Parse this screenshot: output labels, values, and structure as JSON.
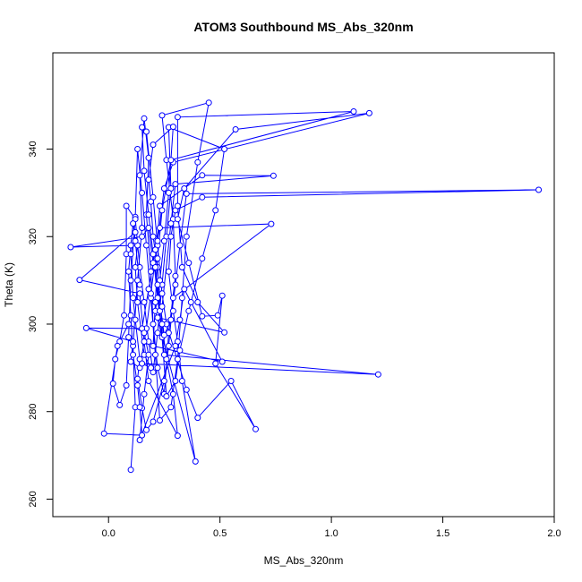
{
  "chart_data": {
    "type": "line",
    "title": "ATOM3 Southbound MS_Abs_320nm",
    "xlabel": "MS_Abs_320nm",
    "ylabel": "Theta (K)",
    "xlim": [
      -0.25,
      2.0
    ],
    "ylim": [
      256,
      362
    ],
    "xticks": [
      0.0,
      0.5,
      1.0,
      1.5,
      2.0
    ],
    "xtick_labels": [
      "0.0",
      "0.5",
      "1.0",
      "1.5",
      "2.0"
    ],
    "yticks": [
      260,
      280,
      300,
      320,
      340
    ],
    "ytick_labels": [
      "260",
      "280",
      "300",
      "320",
      "340"
    ],
    "grid": false,
    "series_color": "#0000ff",
    "marker": "open-circle",
    "points": [
      [
        0.1,
        266.7
      ],
      [
        0.12,
        281.0
      ],
      [
        0.11,
        295.0
      ],
      [
        0.13,
        310.0
      ],
      [
        0.15,
        322.0
      ],
      [
        0.14,
        334.0
      ],
      [
        0.16,
        347.0
      ],
      [
        0.18,
        338.0
      ],
      [
        0.17,
        325.0
      ],
      [
        0.19,
        312.0
      ],
      [
        0.2,
        300.0
      ],
      [
        0.22,
        290.0
      ],
      [
        0.25,
        284.0
      ],
      [
        0.27,
        298.0
      ],
      [
        0.3,
        311.0
      ],
      [
        0.29,
        324.0
      ],
      [
        0.26,
        337.5
      ],
      [
        0.24,
        347.7
      ],
      [
        0.45,
        350.6
      ],
      [
        0.4,
        337.0
      ],
      [
        0.35,
        320.0
      ],
      [
        0.33,
        306.0
      ],
      [
        0.31,
        292.0
      ],
      [
        0.28,
        281.0
      ],
      [
        0.23,
        278.0
      ],
      [
        0.21,
        293.0
      ],
      [
        0.19,
        306.0
      ],
      [
        0.17,
        318.0
      ],
      [
        0.15,
        330.0
      ],
      [
        0.13,
        340.0
      ],
      [
        0.12,
        324.5
      ],
      [
        0.1,
        310.0
      ],
      [
        0.09,
        297.0
      ],
      [
        0.08,
        286.0
      ],
      [
        0.05,
        281.5
      ],
      [
        0.02,
        286.4
      ],
      [
        0.03,
        292.0
      ],
      [
        0.05,
        296.0
      ],
      [
        0.07,
        302.0
      ],
      [
        0.08,
        316.0
      ],
      [
        0.08,
        327.0
      ],
      [
        0.12,
        324.0
      ],
      [
        0.14,
        313.0
      ],
      [
        0.16,
        305.0
      ],
      [
        0.18,
        296.0
      ],
      [
        0.2,
        289.0
      ],
      [
        0.22,
        298.0
      ],
      [
        0.24,
        309.0
      ],
      [
        0.26,
        320.0
      ],
      [
        0.28,
        331.0
      ],
      [
        0.27,
        345.0
      ],
      [
        0.52,
        340.0
      ],
      [
        0.48,
        326.0
      ],
      [
        0.42,
        315.0
      ],
      [
        0.36,
        303.0
      ],
      [
        0.32,
        294.0
      ],
      [
        0.3,
        287.0
      ],
      [
        0.26,
        283.5
      ],
      [
        0.24,
        297.0
      ],
      [
        0.22,
        306.0
      ],
      [
        0.2,
        316.0
      ],
      [
        0.18,
        325.0
      ],
      [
        0.16,
        335.0
      ],
      [
        0.15,
        345.0
      ],
      [
        0.17,
        344.0
      ],
      [
        0.2,
        329.0
      ],
      [
        0.22,
        318.0
      ],
      [
        0.24,
        307.0
      ],
      [
        0.26,
        300.0
      ],
      [
        0.35,
        285.0
      ],
      [
        0.4,
        278.6
      ],
      [
        0.55,
        287.0
      ],
      [
        0.66,
        276.0
      ],
      [
        0.48,
        291.0
      ],
      [
        0.51,
        306.5
      ],
      [
        0.49,
        302.0
      ],
      [
        0.42,
        301.8
      ],
      [
        0.36,
        314.0
      ],
      [
        0.31,
        324.0
      ],
      [
        0.34,
        331.0
      ],
      [
        0.57,
        344.5
      ],
      [
        1.17,
        348.2
      ],
      [
        0.29,
        337.0
      ],
      [
        0.25,
        331.0
      ],
      [
        0.22,
        319.0
      ],
      [
        0.19,
        307.0
      ],
      [
        0.17,
        299.0
      ],
      [
        0.14,
        290.0
      ],
      [
        0.1,
        291.4
      ],
      [
        0.11,
        296.0
      ],
      [
        -0.1,
        299.1
      ],
      [
        0.15,
        299.0
      ],
      [
        0.18,
        308.0
      ],
      [
        0.21,
        317.0
      ],
      [
        0.23,
        322.0
      ],
      [
        0.73,
        322.9
      ],
      [
        0.29,
        306.0
      ],
      [
        0.27,
        295.0
      ],
      [
        0.25,
        287.0
      ],
      [
        0.2,
        277.7
      ],
      [
        0.17,
        275.8
      ],
      [
        0.15,
        280.8
      ],
      [
        0.13,
        287.5
      ],
      [
        0.14,
        292.0
      ],
      [
        0.12,
        301.0
      ],
      [
        0.11,
        306.0
      ],
      [
        0.1,
        316.0
      ],
      [
        0.12,
        321.0
      ],
      [
        -0.13,
        310.1
      ],
      [
        0.14,
        307.0
      ],
      [
        0.16,
        296.0
      ],
      [
        0.18,
        287.0
      ],
      [
        0.31,
        274.5
      ],
      [
        0.29,
        284.0
      ],
      [
        0.26,
        292.0
      ],
      [
        0.24,
        300.0
      ],
      [
        0.22,
        313.0
      ],
      [
        0.2,
        320.0
      ],
      [
        0.19,
        328.0
      ],
      [
        0.18,
        333.0
      ],
      [
        0.2,
        341.0
      ],
      [
        0.29,
        345.1
      ],
      [
        0.27,
        330.0
      ],
      [
        0.25,
        319.0
      ],
      [
        0.23,
        310.0
      ],
      [
        0.21,
        303.0
      ],
      [
        0.39,
        268.6
      ],
      [
        0.33,
        287.0
      ],
      [
        0.31,
        296.0
      ],
      [
        0.29,
        303.0
      ],
      [
        0.27,
        312.0
      ],
      [
        0.28,
        320.0
      ],
      [
        0.3,
        326.0
      ],
      [
        0.42,
        329.0
      ],
      [
        1.93,
        330.7
      ],
      [
        0.35,
        329.8
      ],
      [
        0.32,
        318.0
      ],
      [
        0.3,
        309.0
      ],
      [
        0.28,
        301.0
      ],
      [
        0.25,
        297.5
      ],
      [
        0.22,
        309.0
      ],
      [
        0.2,
        314.0
      ],
      [
        0.18,
        322.0
      ],
      [
        0.15,
        320.0
      ],
      [
        -0.17,
        317.6
      ],
      [
        0.13,
        318.0
      ],
      [
        0.12,
        313.0
      ],
      [
        0.13,
        305.0
      ],
      [
        0.16,
        293.0
      ],
      [
        0.19,
        290.0
      ],
      [
        0.15,
        291.0
      ],
      [
        1.21,
        288.5
      ],
      [
        0.25,
        293.0
      ],
      [
        0.23,
        303.0
      ],
      [
        0.21,
        313.0
      ],
      [
        0.23,
        327.0
      ],
      [
        0.42,
        334.0
      ],
      [
        0.74,
        333.9
      ],
      [
        0.3,
        332.0
      ],
      [
        0.28,
        323.0
      ],
      [
        0.24,
        304.0
      ],
      [
        0.22,
        301.5
      ],
      [
        0.52,
        298.1
      ],
      [
        0.4,
        305.0
      ],
      [
        0.33,
        313.0
      ],
      [
        0.31,
        327.0
      ],
      [
        0.31,
        347.3
      ],
      [
        1.1,
        348.6
      ],
      [
        0.28,
        337.5
      ],
      [
        0.24,
        326.0
      ],
      [
        0.22,
        315.0
      ],
      [
        0.21,
        305.0
      ],
      [
        0.2,
        295.0
      ],
      [
        0.51,
        291.4
      ],
      [
        0.37,
        305.0
      ],
      [
        0.34,
        308.0
      ],
      [
        0.32,
        301.0
      ],
      [
        0.3,
        295.0
      ],
      [
        0.14,
        273.5
      ],
      [
        0.16,
        284.0
      ],
      [
        0.18,
        293.0
      ],
      [
        0.16,
        298.0
      ],
      [
        0.09,
        300.0
      ],
      [
        0.04,
        295.0
      ],
      [
        -0.02,
        275.0
      ],
      [
        0.15,
        274.6
      ],
      [
        0.14,
        281.0
      ],
      [
        0.13,
        286.0
      ],
      [
        0.11,
        293.0
      ],
      [
        0.1,
        302.0
      ],
      [
        0.09,
        312.0
      ],
      [
        0.1,
        318.0
      ],
      [
        0.11,
        323.0
      ],
      [
        0.12,
        319.0
      ],
      [
        0.14,
        309.0
      ]
    ]
  }
}
